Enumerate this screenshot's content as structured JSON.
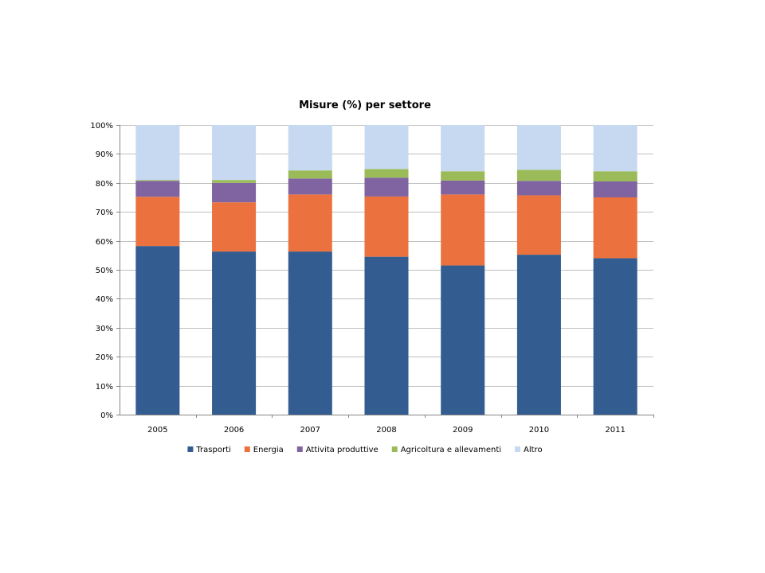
{
  "chart_data": {
    "type": "bar",
    "stacked": true,
    "title": "Misure (%) per settore",
    "xlabel": "",
    "ylabel": "",
    "ylim": [
      0,
      100
    ],
    "grid": true,
    "legend_position": "bottom",
    "y_tick_values": [
      0,
      10,
      20,
      30,
      40,
      50,
      60,
      70,
      80,
      90,
      100
    ],
    "y_tick_labels": [
      "0%",
      "10%",
      "20%",
      "30%",
      "40%",
      "50%",
      "60%",
      "70%",
      "80%",
      "90%",
      "100%"
    ],
    "categories": [
      "2005",
      "2006",
      "2007",
      "2008",
      "2009",
      "2010",
      "2011"
    ],
    "series": [
      {
        "name": "Trasporti",
        "color": "#335D91",
        "values": [
          58.2,
          56.3,
          56.3,
          54.5,
          51.5,
          55.2,
          54.0
        ]
      },
      {
        "name": "Energia",
        "color": "#EB723E",
        "values": [
          17.0,
          17.0,
          19.7,
          20.8,
          24.5,
          20.5,
          21.0
        ]
      },
      {
        "name": "Attivita produttive",
        "color": "#8063A1",
        "values": [
          5.5,
          6.7,
          5.5,
          6.5,
          4.8,
          5.0,
          5.5
        ]
      },
      {
        "name": "Agricoltura e allevamenti",
        "color": "#9BBB59",
        "values": [
          0.3,
          1.0,
          2.8,
          3.0,
          3.2,
          3.8,
          3.5
        ]
      },
      {
        "name": "Altro",
        "color": "#C6D9F0",
        "values": [
          19.0,
          19.0,
          15.7,
          15.2,
          16.0,
          15.5,
          16.0
        ]
      }
    ]
  }
}
